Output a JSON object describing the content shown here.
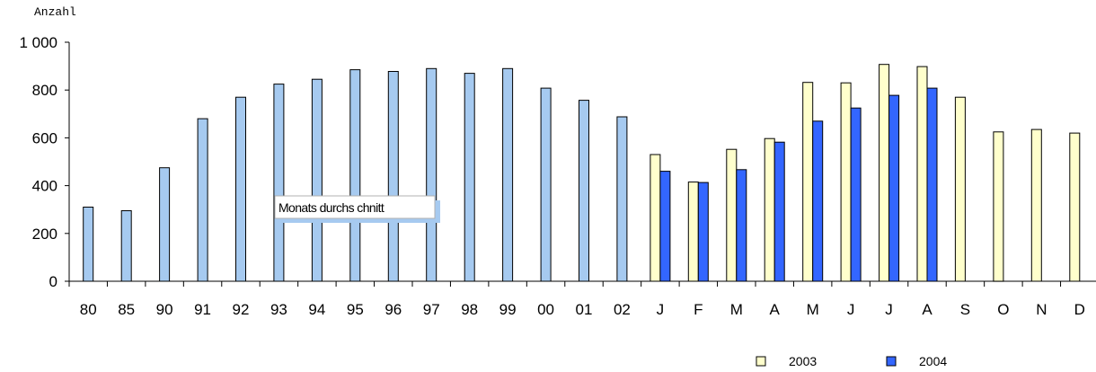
{
  "chart_data": {
    "type": "bar",
    "ylabel": "Anzahl",
    "ylim": [
      0,
      1000
    ],
    "yticks": [
      "0",
      "200",
      "400",
      "600",
      "800",
      "1 000"
    ],
    "ytick_values": [
      0,
      200,
      400,
      600,
      800,
      1000
    ],
    "grid": false,
    "legend_position": "bottom-right",
    "annotation": "Monats durchs chnitt",
    "yearly": {
      "categories": [
        "80",
        "85",
        "90",
        "91",
        "92",
        "93",
        "94",
        "95",
        "96",
        "97",
        "98",
        "99",
        "00",
        "01",
        "02"
      ],
      "values": [
        310,
        295,
        475,
        680,
        770,
        825,
        845,
        885,
        878,
        890,
        870,
        890,
        808,
        757,
        688
      ],
      "color": "#a6caf0"
    },
    "monthly": {
      "categories": [
        "J",
        "F",
        "M",
        "A",
        "M",
        "J",
        "J",
        "A",
        "S",
        "O",
        "N",
        "D"
      ],
      "series": [
        {
          "name": "2003",
          "color": "#ffffcc",
          "values": [
            530,
            415,
            552,
            597,
            832,
            830,
            907,
            898,
            770,
            625,
            635,
            620
          ]
        },
        {
          "name": "2004",
          "color": "#3366ff",
          "values": [
            460,
            413,
            467,
            582,
            670,
            725,
            778,
            808,
            null,
            null,
            null,
            null
          ]
        }
      ]
    }
  }
}
